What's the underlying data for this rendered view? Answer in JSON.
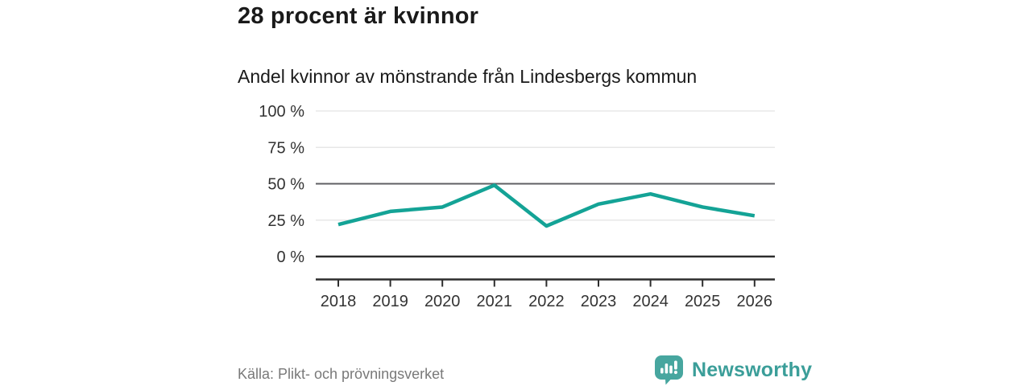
{
  "header": {
    "title": "28 procent är kvinnor",
    "subtitle": "Andel kvinnor av mönstrande från Lindesbergs kommun"
  },
  "chart_data": {
    "type": "line",
    "title": "28 procent är kvinnor",
    "subtitle": "Andel kvinnor av mönstrande från Lindesbergs kommun",
    "categories": [
      "2018",
      "2019",
      "2020",
      "2021",
      "2022",
      "2023",
      "2024",
      "2025",
      "2026"
    ],
    "series": [
      {
        "name": "Andel kvinnor av mönstrande",
        "values": [
          22,
          31,
          34,
          49,
          21,
          36,
          43,
          34,
          28
        ]
      }
    ],
    "unit": "%",
    "ylim": [
      0,
      100
    ],
    "yticks": [
      0,
      25,
      50,
      75,
      100
    ],
    "ytick_labels": [
      "0 %",
      "25 %",
      "50 %",
      "75 %",
      "100 %"
    ],
    "grid": true,
    "highlight_gridline": 50,
    "legend": "none",
    "xlabel": "",
    "ylabel": ""
  },
  "colors": {
    "line": "#14a396",
    "grid_light": "#e3e3e3",
    "grid_mid": "#5f5f63",
    "axis_dark": "#2d2d2d",
    "tick_text": "#333333",
    "title_text": "#1a1a1a",
    "source_text": "#797979",
    "logo_bubble": "#47a69f",
    "wordmark": "#3b9e99"
  },
  "footer": {
    "source": "Källa: Plikt- och prövningsverket",
    "brand_name": "Newsworthy"
  },
  "icons": {
    "logo": "newsworthy-speech-bubble-bar-chart-icon"
  }
}
